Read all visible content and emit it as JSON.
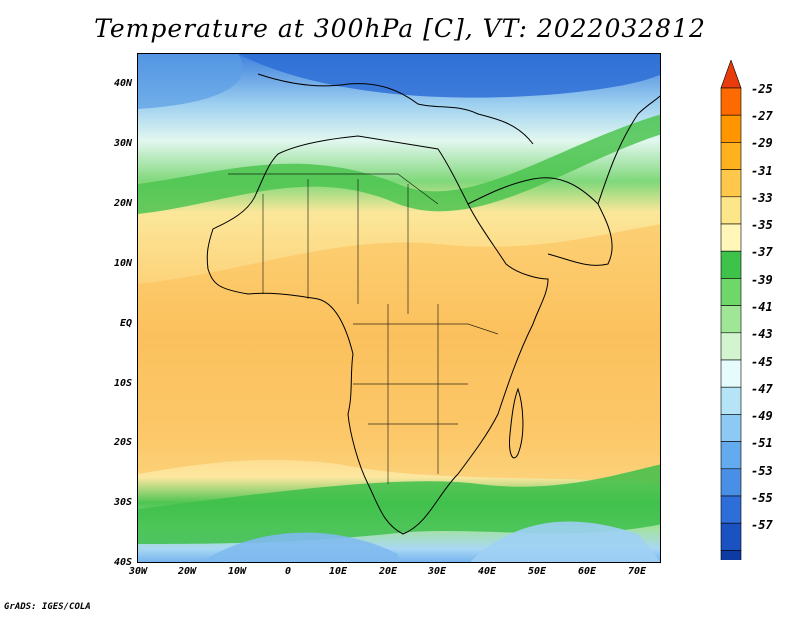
{
  "title": "Temperature at 300hPa [C], VT: 2022032812",
  "credit": "GrADS: IGES/COLA",
  "map": {
    "lat_labels": [
      "40N",
      "30N",
      "20N",
      "10N",
      "EQ",
      "10S",
      "20S",
      "30S",
      "40S"
    ],
    "lon_labels": [
      "30W",
      "20W",
      "10W",
      "0",
      "10E",
      "20E",
      "30E",
      "40E",
      "50E",
      "60E",
      "70E"
    ]
  },
  "colorbar": {
    "labels": [
      "-25",
      "-27",
      "-29",
      "-31",
      "-33",
      "-35",
      "-37",
      "-39",
      "-41",
      "-43",
      "-45",
      "-47",
      "-49",
      "-51",
      "-53",
      "-55",
      "-57"
    ],
    "colors": [
      "#e83c0c",
      "#ff6a00",
      "#ff9600",
      "#ffb21e",
      "#ffc84a",
      "#fde68a",
      "#fff6b8",
      "#3ec24a",
      "#6fd66a",
      "#9fe797",
      "#d2f5cf",
      "#e6fcfc",
      "#b5e4f6",
      "#8ccaf4",
      "#63aaee",
      "#4a8fe6",
      "#2e6ed8",
      "#1a52c2",
      "#0e3aa4",
      "#0a1e78",
      "#e8e8ff"
    ]
  }
}
